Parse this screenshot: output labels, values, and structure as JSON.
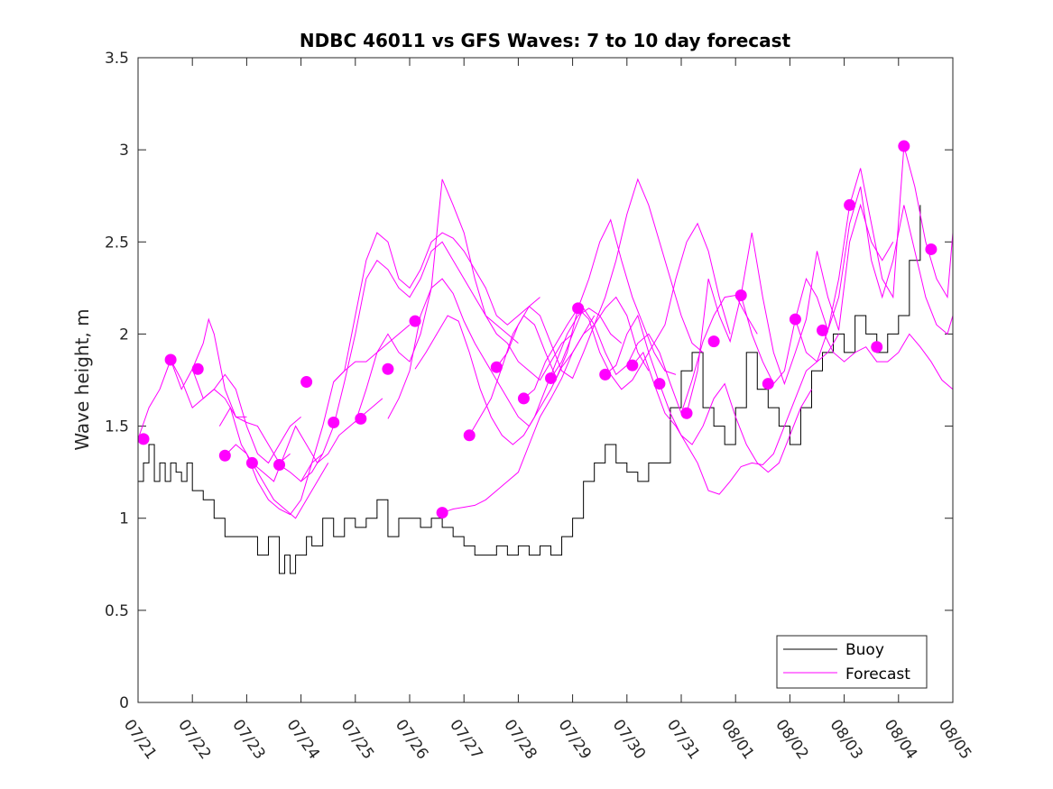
{
  "chart_data": {
    "type": "line",
    "title": "NDBC 46011 vs GFS Waves: 7 to 10 day forecast",
    "xlabel": "",
    "ylabel": "Wave height, m",
    "xlim": [
      0,
      15
    ],
    "ylim": [
      0,
      3.5
    ],
    "x_ticks": [
      0,
      1,
      2,
      3,
      4,
      5,
      6,
      7,
      8,
      9,
      10,
      11,
      12,
      13,
      14,
      15
    ],
    "x_tick_labels": [
      "07/21",
      "07/22",
      "07/23",
      "07/24",
      "07/25",
      "07/26",
      "07/27",
      "07/28",
      "07/29",
      "07/30",
      "07/31",
      "08/01",
      "08/02",
      "08/03",
      "08/04",
      "08/05"
    ],
    "y_ticks": [
      0,
      0.5,
      1,
      1.5,
      2,
      2.5,
      3,
      3.5
    ],
    "y_tick_labels": [
      "0",
      "0.5",
      "1",
      "1.5",
      "2",
      "2.5",
      "3",
      "3.5"
    ],
    "grid": false,
    "legend_position": "bottom-right",
    "colors": {
      "buoy": "#000000",
      "forecast": "#ff00ff"
    },
    "series": [
      {
        "name": "Buoy",
        "type": "line",
        "x": [
          0,
          0.1,
          0.2,
          0.3,
          0.4,
          0.5,
          0.6,
          0.7,
          0.8,
          0.9,
          1.0,
          1.2,
          1.4,
          1.6,
          1.8,
          2.0,
          2.2,
          2.4,
          2.6,
          2.7,
          2.8,
          2.9,
          3.0,
          3.1,
          3.2,
          3.4,
          3.6,
          3.8,
          4.0,
          4.2,
          4.4,
          4.6,
          4.8,
          5.0,
          5.2,
          5.4,
          5.6,
          5.8,
          6.0,
          6.2,
          6.4,
          6.6,
          6.8,
          7.0,
          7.2,
          7.4,
          7.6,
          7.8,
          8.0,
          8.2,
          8.4,
          8.6,
          8.8,
          9.0,
          9.2,
          9.4,
          9.6,
          9.8,
          10.0,
          10.2,
          10.4,
          10.6,
          10.8,
          11.0,
          11.2,
          11.4,
          11.6,
          11.8,
          12.0,
          12.2,
          12.4,
          12.6,
          12.8,
          13.0,
          13.2,
          13.4,
          13.6,
          13.8,
          14.0,
          14.2,
          14.4
        ],
        "y": [
          1.2,
          1.3,
          1.4,
          1.2,
          1.3,
          1.2,
          1.3,
          1.25,
          1.2,
          1.3,
          1.15,
          1.1,
          1.0,
          0.9,
          0.9,
          0.9,
          0.8,
          0.9,
          0.7,
          0.8,
          0.7,
          0.8,
          0.8,
          0.9,
          0.85,
          1.0,
          0.9,
          1.0,
          0.95,
          1.0,
          1.1,
          0.9,
          1.0,
          1.0,
          0.95,
          1.0,
          0.95,
          0.9,
          0.85,
          0.8,
          0.8,
          0.85,
          0.8,
          0.85,
          0.8,
          0.85,
          0.8,
          0.9,
          1.0,
          1.2,
          1.3,
          1.4,
          1.3,
          1.25,
          1.2,
          1.3,
          1.3,
          1.6,
          1.8,
          1.9,
          1.6,
          1.5,
          1.4,
          1.6,
          1.9,
          1.7,
          1.6,
          1.5,
          1.4,
          1.6,
          1.8,
          1.9,
          2.0,
          1.9,
          2.1,
          2.0,
          1.9,
          2.0,
          2.1,
          2.4,
          2.7
        ]
      },
      {
        "name": "Forecast",
        "type": "line",
        "x": [
          0,
          0.2,
          0.4,
          0.6,
          0.8,
          1.0,
          1.2,
          1.4,
          1.6,
          1.8,
          2.0
        ],
        "y": [
          1.43,
          1.6,
          1.7,
          1.86,
          1.75,
          1.6,
          1.65,
          1.7,
          1.65,
          1.55,
          1.55
        ]
      },
      {
        "type": "line",
        "x": [
          0.6,
          0.8,
          1.0,
          1.2,
          1.3,
          1.4,
          1.6,
          1.8,
          2.0,
          2.2,
          2.4,
          2.6,
          2.8
        ],
        "y": [
          1.86,
          1.7,
          1.81,
          1.95,
          2.08,
          2.0,
          1.7,
          1.55,
          1.52,
          1.5,
          1.4,
          1.3,
          1.35
        ]
      },
      {
        "type": "line",
        "x": [
          1.0,
          1.2,
          1.4,
          1.6,
          1.8,
          2.0,
          2.2,
          2.4,
          2.6,
          2.8,
          3.0
        ],
        "y": [
          1.81,
          1.65,
          1.7,
          1.78,
          1.7,
          1.5,
          1.35,
          1.3,
          1.4,
          1.5,
          1.55
        ]
      },
      {
        "type": "line",
        "x": [
          1.6,
          1.8,
          2.0,
          2.2,
          2.4,
          2.6,
          2.8,
          3.0,
          3.2,
          3.4
        ],
        "y": [
          1.34,
          1.4,
          1.35,
          1.2,
          1.1,
          1.05,
          1.02,
          1.1,
          1.3,
          1.35
        ]
      },
      {
        "type": "line",
        "x": [
          1.5,
          1.7,
          1.9,
          2.1,
          2.3,
          2.5,
          2.7,
          2.9,
          3.1,
          3.3,
          3.5
        ],
        "y": [
          1.5,
          1.6,
          1.4,
          1.3,
          1.2,
          1.1,
          1.05,
          1.0,
          1.1,
          1.2,
          1.3
        ]
      },
      {
        "type": "line",
        "x": [
          2.1,
          2.3,
          2.5,
          2.7,
          2.9,
          3.1,
          3.3,
          3.5,
          3.7,
          3.9,
          4.1,
          4.3,
          4.5
        ],
        "y": [
          1.3,
          1.25,
          1.2,
          1.35,
          1.5,
          1.4,
          1.3,
          1.35,
          1.45,
          1.5,
          1.55,
          1.6,
          1.65
        ]
      },
      {
        "type": "line",
        "x": [
          2.6,
          2.8,
          3.0,
          3.2,
          3.4,
          3.6,
          3.8,
          4.0,
          4.2,
          4.4,
          4.6,
          4.8,
          5.0
        ],
        "y": [
          1.29,
          1.25,
          1.2,
          1.3,
          1.5,
          1.74,
          1.8,
          1.85,
          1.85,
          1.9,
          1.95,
          2.0,
          2.05
        ]
      },
      {
        "type": "line",
        "x": [
          3.0,
          3.2,
          3.4,
          3.6,
          3.8,
          4.0,
          4.2,
          4.4,
          4.6,
          4.8,
          5.0,
          5.2,
          5.4,
          5.6,
          5.8,
          6.0,
          6.2,
          6.4,
          6.6,
          6.8,
          7.0
        ],
        "y": [
          1.2,
          1.25,
          1.35,
          1.5,
          1.74,
          2.0,
          2.3,
          2.4,
          2.35,
          2.25,
          2.2,
          2.3,
          2.45,
          2.5,
          2.4,
          2.3,
          2.2,
          2.1,
          2.05,
          2.0,
          1.95
        ]
      },
      {
        "type": "line",
        "x": [
          3.6,
          3.8,
          4.0,
          4.2,
          4.4,
          4.6,
          4.8,
          5.0,
          5.2,
          5.4,
          5.6,
          5.8,
          6.0,
          6.2,
          6.4,
          6.6,
          6.8,
          7.0,
          7.2,
          7.4
        ],
        "y": [
          1.74,
          1.8,
          2.1,
          2.4,
          2.55,
          2.5,
          2.3,
          2.25,
          2.35,
          2.5,
          2.55,
          2.52,
          2.45,
          2.35,
          2.25,
          2.1,
          2.05,
          2.1,
          2.15,
          2.2
        ]
      },
      {
        "type": "line",
        "x": [
          4.0,
          4.2,
          4.4,
          4.6,
          4.8,
          5.0,
          5.2,
          5.4,
          5.6,
          5.8,
          6.0,
          6.2,
          6.4,
          6.6,
          6.8,
          7.0,
          7.2,
          7.4,
          7.6,
          7.8,
          8.0
        ],
        "y": [
          1.52,
          1.7,
          1.9,
          2.0,
          1.9,
          1.85,
          2.0,
          2.25,
          2.84,
          2.7,
          2.55,
          2.3,
          2.1,
          2.0,
          1.95,
          1.85,
          1.8,
          1.75,
          1.85,
          1.95,
          2.0
        ]
      },
      {
        "type": "line",
        "x": [
          4.6,
          4.8,
          5.0,
          5.2,
          5.4,
          5.6,
          5.8,
          6.0,
          6.2,
          6.4,
          6.6,
          6.8,
          7.0,
          7.2,
          7.4,
          7.6,
          7.8,
          8.0,
          8.2,
          8.4
        ],
        "y": [
          1.54,
          1.65,
          1.8,
          2.1,
          2.25,
          2.3,
          2.22,
          2.07,
          1.95,
          1.85,
          1.75,
          1.65,
          1.55,
          1.5,
          1.6,
          1.7,
          1.82,
          1.9,
          2.0,
          2.1
        ]
      },
      {
        "type": "line",
        "x": [
          5.1,
          5.3,
          5.5,
          5.7,
          5.9,
          6.1,
          6.3,
          6.5,
          6.7,
          6.9,
          7.1,
          7.3,
          7.5,
          7.7,
          7.9,
          8.1,
          8.3,
          8.5,
          8.7,
          8.9
        ],
        "y": [
          1.81,
          1.9,
          2.0,
          2.1,
          2.07,
          1.9,
          1.7,
          1.55,
          1.45,
          1.4,
          1.45,
          1.55,
          1.7,
          1.85,
          2.0,
          2.1,
          2.14,
          2.1,
          2.0,
          1.95
        ]
      },
      {
        "type": "line",
        "x": [
          5.6,
          5.8,
          6.0,
          6.2,
          6.4,
          6.6,
          6.8,
          7.0,
          7.2,
          7.4,
          7.6,
          7.8,
          8.0,
          8.2,
          8.4,
          8.6,
          8.8,
          9.0,
          9.2,
          9.4
        ],
        "y": [
          1.03,
          1.05,
          1.06,
          1.07,
          1.1,
          1.15,
          1.2,
          1.25,
          1.4,
          1.55,
          1.65,
          1.76,
          1.9,
          2.0,
          2.05,
          2.14,
          2.2,
          2.1,
          1.9,
          1.8
        ]
      },
      {
        "type": "line",
        "x": [
          6.1,
          6.3,
          6.5,
          6.7,
          6.9,
          7.1,
          7.3,
          7.5,
          7.7,
          7.9,
          8.1,
          8.3,
          8.5,
          8.7,
          8.9,
          9.1,
          9.3,
          9.5,
          9.7,
          9.9
        ],
        "y": [
          1.45,
          1.55,
          1.65,
          1.82,
          2.0,
          2.1,
          2.05,
          1.9,
          1.76,
          1.9,
          2.14,
          2.3,
          2.5,
          2.62,
          2.4,
          2.2,
          2.05,
          1.9,
          1.8,
          1.78
        ]
      },
      {
        "type": "line",
        "x": [
          6.6,
          6.8,
          7.0,
          7.2,
          7.4,
          7.6,
          7.8,
          8.0,
          8.2,
          8.4,
          8.6,
          8.8,
          9.0,
          9.2,
          9.4,
          9.6,
          9.8,
          10.0,
          10.2,
          10.4
        ],
        "y": [
          1.82,
          1.9,
          2.05,
          2.15,
          2.1,
          1.95,
          1.8,
          1.76,
          1.9,
          2.05,
          2.2,
          2.4,
          2.65,
          2.84,
          2.7,
          2.5,
          2.3,
          2.1,
          1.95,
          1.9
        ]
      },
      {
        "type": "line",
        "x": [
          7.1,
          7.3,
          7.5,
          7.7,
          7.9,
          8.1,
          8.3,
          8.5,
          8.7,
          8.9,
          9.1,
          9.3,
          9.5,
          9.7,
          9.9,
          10.1,
          10.3,
          10.5,
          10.7,
          10.9
        ],
        "y": [
          1.65,
          1.7,
          1.85,
          1.95,
          2.05,
          2.14,
          2.08,
          1.9,
          1.78,
          1.7,
          1.75,
          1.85,
          1.95,
          2.05,
          2.3,
          2.5,
          2.6,
          2.45,
          2.2,
          2.0
        ]
      },
      {
        "type": "line",
        "x": [
          7.6,
          7.8,
          8.0,
          8.2,
          8.4,
          8.6,
          8.8,
          9.0,
          9.2,
          9.4,
          9.6,
          9.8,
          10.0,
          10.2,
          10.4,
          10.6,
          10.8,
          11.0,
          11.2,
          11.4
        ],
        "y": [
          1.76,
          1.85,
          2.0,
          2.14,
          2.05,
          1.9,
          1.78,
          1.83,
          1.95,
          2.0,
          1.9,
          1.73,
          1.57,
          1.75,
          1.96,
          2.1,
          2.2,
          2.21,
          2.1,
          2.0
        ]
      },
      {
        "type": "line",
        "x": [
          8.6,
          8.8,
          9.0,
          9.2,
          9.4,
          9.6,
          9.8,
          10.0,
          10.2,
          10.4,
          10.6,
          10.8,
          11.0,
          11.2,
          11.4,
          11.6,
          11.8,
          12.0,
          12.2,
          12.4
        ],
        "y": [
          1.78,
          1.83,
          2.0,
          2.1,
          1.9,
          1.73,
          1.57,
          1.45,
          1.4,
          1.5,
          1.65,
          1.73,
          1.55,
          1.4,
          1.3,
          1.25,
          1.3,
          1.45,
          1.6,
          1.7
        ]
      },
      {
        "type": "line",
        "x": [
          9.1,
          9.3,
          9.5,
          9.7,
          9.9,
          10.1,
          10.3,
          10.5,
          10.7,
          10.9,
          11.1,
          11.3,
          11.5,
          11.7,
          11.9,
          12.1,
          12.3,
          12.5,
          12.7,
          12.9
        ],
        "y": [
          1.83,
          1.9,
          1.73,
          1.57,
          1.5,
          1.4,
          1.3,
          1.15,
          1.13,
          1.2,
          1.28,
          1.3,
          1.29,
          1.35,
          1.5,
          1.65,
          1.8,
          1.85,
          1.9,
          2.0
        ]
      },
      {
        "type": "line",
        "x": [
          10.1,
          10.3,
          10.5,
          10.7,
          10.9,
          11.1,
          11.3,
          11.5,
          11.7,
          11.9,
          12.1,
          12.3,
          12.5,
          12.7,
          12.9,
          13.1,
          13.3,
          13.5,
          13.7,
          13.9
        ],
        "y": [
          1.57,
          1.8,
          2.3,
          2.1,
          1.96,
          2.21,
          2.55,
          2.2,
          1.9,
          1.73,
          1.9,
          2.08,
          2.45,
          2.2,
          2.02,
          2.5,
          2.7,
          2.5,
          2.4,
          2.5
        ]
      },
      {
        "type": "line",
        "x": [
          11.1,
          11.3,
          11.5,
          11.7,
          11.9,
          12.1,
          12.3,
          12.5,
          12.7,
          12.9,
          13.1,
          13.3,
          13.5,
          13.7,
          13.9,
          14.1,
          14.3,
          14.5,
          14.7,
          14.9,
          15.0
        ],
        "y": [
          2.21,
          2.0,
          1.85,
          1.73,
          1.8,
          2.08,
          2.3,
          2.2,
          2.02,
          2.3,
          2.7,
          2.9,
          2.6,
          2.3,
          2.2,
          3.02,
          2.8,
          2.5,
          2.3,
          2.2,
          2.55
        ]
      },
      {
        "type": "line",
        "x": [
          12.1,
          12.3,
          12.5,
          12.7,
          12.9,
          13.1,
          13.3,
          13.5,
          13.7,
          13.9,
          14.1,
          14.3,
          14.5,
          14.7,
          14.9,
          15.0
        ],
        "y": [
          2.08,
          1.9,
          1.85,
          2.02,
          2.2,
          2.6,
          2.8,
          2.4,
          2.2,
          2.4,
          2.7,
          2.45,
          2.2,
          2.05,
          2.0,
          2.1
        ]
      },
      {
        "type": "line",
        "x": [
          12.6,
          12.8,
          13.0,
          13.2,
          13.4,
          13.6,
          13.8,
          14.0,
          14.2,
          14.4,
          14.6,
          14.8,
          15.0
        ],
        "y": [
          2.02,
          1.9,
          1.85,
          1.9,
          1.93,
          1.85,
          1.85,
          1.9,
          2.0,
          1.93,
          1.85,
          1.75,
          1.7
        ]
      }
    ],
    "markers": {
      "x": [
        0.1,
        0.6,
        1.1,
        1.6,
        2.1,
        2.6,
        3.1,
        3.6,
        4.1,
        4.6,
        5.1,
        5.6,
        6.1,
        6.6,
        7.1,
        7.6,
        8.1,
        8.6,
        9.1,
        9.6,
        10.1,
        10.6,
        11.1,
        11.6,
        12.1,
        12.6,
        13.1,
        13.6,
        14.1,
        14.6
      ],
      "y": [
        1.43,
        1.86,
        1.81,
        1.34,
        1.3,
        1.29,
        1.74,
        1.52,
        1.54,
        1.81,
        2.07,
        1.03,
        1.45,
        1.82,
        1.65,
        1.76,
        2.14,
        1.78,
        1.83,
        1.73,
        1.57,
        1.96,
        2.21,
        1.73,
        2.08,
        2.02,
        2.7,
        1.93,
        3.02,
        2.46
      ]
    },
    "legend": [
      "Buoy",
      "Forecast"
    ]
  }
}
